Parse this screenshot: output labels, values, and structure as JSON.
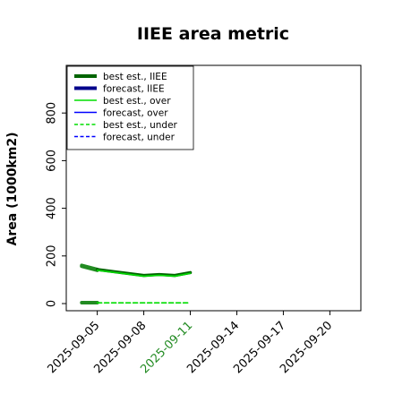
{
  "chart_data": {
    "type": "line",
    "title": "IIEE area metric",
    "xlabel": "",
    "ylabel": "Area (1000km2)",
    "xlim": [
      "2025-09-03",
      "2025-09-22"
    ],
    "ylim": [
      -30,
      1000
    ],
    "y_ticks": [
      0,
      200,
      400,
      600,
      800
    ],
    "x_ticks": [
      "2025-09-05",
      "2025-09-08",
      "2025-09-11",
      "2025-09-14",
      "2025-09-17",
      "2025-09-20"
    ],
    "highlighted_x_tick": "2025-09-11",
    "highlight_color": "#228b22",
    "grid": false,
    "legend_position": "upper-left",
    "series": [
      {
        "name": "best est., IIEE",
        "style": "solid",
        "color": "#006400",
        "x": [
          "2025-09-05",
          "2025-09-08",
          "2025-09-09",
          "2025-09-10",
          "2025-09-11"
        ],
        "y": [
          143,
          118,
          122,
          118,
          130
        ]
      },
      {
        "name": "forecast, IIEE",
        "style": "solid",
        "color": "#00008b",
        "x": [],
        "y": []
      },
      {
        "name": "best est., over",
        "style": "solid",
        "color": "#00dd00",
        "x": [
          "2025-09-05",
          "2025-09-08",
          "2025-09-09",
          "2025-09-10",
          "2025-09-11"
        ],
        "y": [
          140,
          115,
          119,
          115,
          127
        ]
      },
      {
        "name": "forecast, over",
        "style": "solid",
        "color": "#0000ff",
        "x": [],
        "y": []
      },
      {
        "name": "best est., under",
        "style": "dashed",
        "color": "#00dd00",
        "x": [
          "2025-09-05",
          "2025-09-08",
          "2025-09-09",
          "2025-09-10",
          "2025-09-11"
        ],
        "y": [
          3,
          3,
          3,
          3,
          3
        ]
      },
      {
        "name": "forecast, under",
        "style": "dashed",
        "color": "#0000ff",
        "x": [],
        "y": []
      }
    ],
    "hindcast_segments": [
      {
        "series": "best est., IIEE",
        "color": "#228b22",
        "x": [
          "2025-09-04",
          "2025-09-05"
        ],
        "y": [
          160,
          143
        ]
      },
      {
        "series": "best est., over",
        "color": "#228b22",
        "x": [
          "2025-09-04",
          "2025-09-05"
        ],
        "y": [
          157,
          140
        ]
      },
      {
        "series": "best est., IIEE",
        "color": "#228b22",
        "x": [
          "2025-09-04",
          "2025-09-05"
        ],
        "y": [
          4,
          4
        ]
      }
    ]
  }
}
